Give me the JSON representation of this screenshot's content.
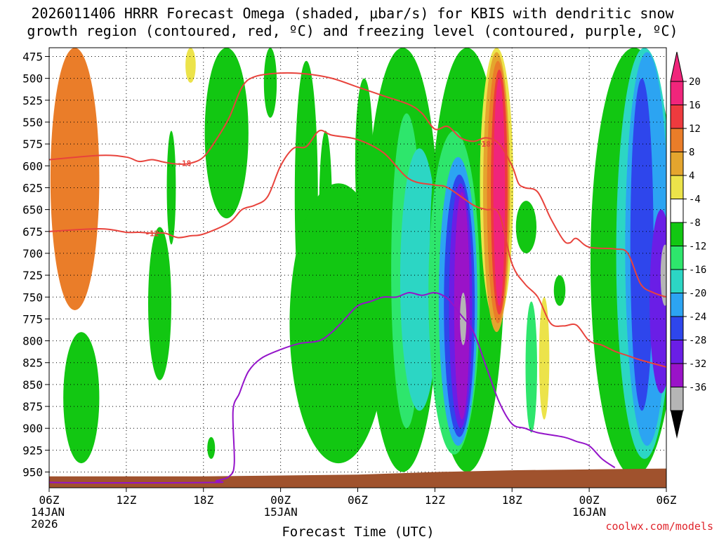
{
  "chart_data": {
    "type": "heatmap",
    "title_line1": "2026011406 HRRR Forecast Omega (shaded, μbar/s) for KBIS with dendritic snow",
    "title_line2": "growth region (contoured, red, ºC) and freezing level (contoured, purple, ºC)",
    "xlabel": "Forecast Time (UTC)",
    "credit": "coolwx.com/models",
    "x_range_hours": [
      0,
      48
    ],
    "y_range_mb": [
      465,
      968
    ],
    "y_ticks": [
      {
        "value": 475,
        "label": "475"
      },
      {
        "value": 500,
        "label": "500"
      },
      {
        "value": 525,
        "label": "525"
      },
      {
        "value": 550,
        "label": "550"
      },
      {
        "value": 575,
        "label": "575"
      },
      {
        "value": 600,
        "label": "600"
      },
      {
        "value": 625,
        "label": "625"
      },
      {
        "value": 650,
        "label": "650"
      },
      {
        "value": 675,
        "label": "675"
      },
      {
        "value": 700,
        "label": "700"
      },
      {
        "value": 725,
        "label": "725"
      },
      {
        "value": 750,
        "label": "750"
      },
      {
        "value": 775,
        "label": "775"
      },
      {
        "value": 800,
        "label": "800"
      },
      {
        "value": 825,
        "label": "825"
      },
      {
        "value": 850,
        "label": "850"
      },
      {
        "value": 875,
        "label": "875"
      },
      {
        "value": 900,
        "label": "900"
      },
      {
        "value": 925,
        "label": "925"
      },
      {
        "value": 950,
        "label": "950"
      }
    ],
    "x_ticks": [
      {
        "hour": 0,
        "lines": [
          "06Z",
          "14JAN",
          "2026"
        ]
      },
      {
        "hour": 6,
        "lines": [
          "12Z"
        ]
      },
      {
        "hour": 12,
        "lines": [
          "18Z"
        ]
      },
      {
        "hour": 18,
        "lines": [
          "00Z",
          "15JAN"
        ]
      },
      {
        "hour": 24,
        "lines": [
          "06Z"
        ]
      },
      {
        "hour": 30,
        "lines": [
          "12Z"
        ]
      },
      {
        "hour": 36,
        "lines": [
          "18Z"
        ]
      },
      {
        "hour": 42,
        "lines": [
          "00Z",
          "16JAN"
        ]
      },
      {
        "hour": 48,
        "lines": [
          "06Z"
        ]
      }
    ],
    "colorbar": {
      "labels": [
        "20",
        "16",
        "12",
        "8",
        "4",
        "-4",
        "-8",
        "-12",
        "-16",
        "-20",
        "-24",
        "-28",
        "-32",
        "-36"
      ],
      "bins": [
        {
          "lo": 20,
          "hi": 24,
          "color": "#f0257b"
        },
        {
          "lo": 16,
          "hi": 20,
          "color": "#ee3a3e"
        },
        {
          "lo": 12,
          "hi": 16,
          "color": "#ea7d29"
        },
        {
          "lo": 8,
          "hi": 12,
          "color": "#e4a52e"
        },
        {
          "lo": 4,
          "hi": 8,
          "color": "#ece34a"
        },
        {
          "lo": -4,
          "hi": 4,
          "color": "#ffffff"
        },
        {
          "lo": -8,
          "hi": -4,
          "color": "#12c712"
        },
        {
          "lo": -12,
          "hi": -8,
          "color": "#2ee66c"
        },
        {
          "lo": -16,
          "hi": -12,
          "color": "#2cd6c4"
        },
        {
          "lo": -20,
          "hi": -16,
          "color": "#2ca4f2"
        },
        {
          "lo": -24,
          "hi": -20,
          "color": "#2e46ec"
        },
        {
          "lo": -28,
          "hi": -24,
          "color": "#6a1ee6"
        },
        {
          "lo": -32,
          "hi": -28,
          "color": "#9a13c8"
        },
        {
          "lo": -36,
          "hi": -32,
          "color": "#b5b5b5"
        }
      ],
      "top_arrow_color": "#f0257b",
      "bottom_arrow_color": "#000000"
    },
    "terrain": {
      "color": "#a0522d",
      "surface_mb": [
        [
          0,
          955
        ],
        [
          12,
          955
        ],
        [
          24,
          953
        ],
        [
          30,
          950
        ],
        [
          36,
          948
        ],
        [
          48,
          946
        ]
      ]
    },
    "omega_features": [
      {
        "hour": 2,
        "top": 465,
        "bottom": 765,
        "hw": 1.9,
        "value": 15
      },
      {
        "hour": 11,
        "top": 465,
        "bottom": 505,
        "hw": 0.4,
        "value": 5
      },
      {
        "hour": 2.5,
        "top": 790,
        "bottom": 940,
        "hw": 1.4,
        "value": -6
      },
      {
        "hour": 8.6,
        "top": 670,
        "bottom": 845,
        "hw": 0.9,
        "value": -6
      },
      {
        "hour": 9.5,
        "top": 560,
        "bottom": 690,
        "hw": 0.35,
        "value": -6
      },
      {
        "hour": 12.6,
        "top": 910,
        "bottom": 935,
        "hw": 0.3,
        "value": -6
      },
      {
        "hour": 13.8,
        "top": 465,
        "bottom": 660,
        "hw": 1.7,
        "value": -6
      },
      {
        "hour": 17.2,
        "top": 465,
        "bottom": 545,
        "hw": 0.5,
        "value": -6
      },
      {
        "hour": 20,
        "top": 480,
        "bottom": 790,
        "hw": 0.9,
        "value": -6
      },
      {
        "hour": 21.5,
        "top": 560,
        "bottom": 740,
        "hw": 0.5,
        "value": -6
      },
      {
        "hour": 24.5,
        "top": 500,
        "bottom": 690,
        "hw": 0.7,
        "value": -6
      },
      {
        "hour": 22.5,
        "top": 620,
        "bottom": 940,
        "hw": 3.8,
        "value": -6
      },
      {
        "hour": 27.5,
        "top": 465,
        "bottom": 950,
        "hw": 2.9,
        "value": -6
      },
      {
        "hour": 27.8,
        "top": 540,
        "bottom": 900,
        "hw": 1.2,
        "value": -10
      },
      {
        "hour": 28.8,
        "top": 580,
        "bottom": 880,
        "hw": 1.5,
        "value": -14
      },
      {
        "hour": 32.5,
        "top": 465,
        "bottom": 950,
        "hw": 2.9,
        "value": -8
      },
      {
        "hour": 31.5,
        "top": 560,
        "bottom": 930,
        "hw": 2.0,
        "value": -12
      },
      {
        "hour": 31.8,
        "top": 590,
        "bottom": 920,
        "hw": 1.5,
        "value": -18
      },
      {
        "hour": 31.9,
        "top": 610,
        "bottom": 910,
        "hw": 1.2,
        "value": -22
      },
      {
        "hour": 32.0,
        "top": 620,
        "bottom": 900,
        "hw": 0.9,
        "value": -26
      },
      {
        "hour": 32.1,
        "top": 630,
        "bottom": 890,
        "hw": 0.6,
        "value": -30
      },
      {
        "hour": 32.2,
        "top": 745,
        "bottom": 805,
        "hw": 0.25,
        "value": -34
      },
      {
        "hour": 34.8,
        "top": 465,
        "bottom": 780,
        "hw": 1.3,
        "value": 6
      },
      {
        "hour": 34.8,
        "top": 470,
        "bottom": 790,
        "hw": 1.05,
        "value": 10
      },
      {
        "hour": 34.9,
        "top": 480,
        "bottom": 780,
        "hw": 0.85,
        "value": 14
      },
      {
        "hour": 35.0,
        "top": 490,
        "bottom": 770,
        "hw": 0.65,
        "value": 18
      },
      {
        "hour": 35.0,
        "top": 500,
        "bottom": 760,
        "hw": 0.45,
        "value": 22
      },
      {
        "hour": 37.1,
        "top": 640,
        "bottom": 700,
        "hw": 0.8,
        "value": -6
      },
      {
        "hour": 37.5,
        "top": 755,
        "bottom": 905,
        "hw": 0.45,
        "value": -10
      },
      {
        "hour": 38.5,
        "top": 750,
        "bottom": 890,
        "hw": 0.4,
        "value": 6
      },
      {
        "hour": 39.7,
        "top": 725,
        "bottom": 760,
        "hw": 0.45,
        "value": -6
      },
      {
        "hour": 45.5,
        "top": 465,
        "bottom": 955,
        "hw": 3.4,
        "value": -8
      },
      {
        "hour": 46.3,
        "top": 465,
        "bottom": 935,
        "hw": 2.2,
        "value": -14
      },
      {
        "hour": 46.5,
        "top": 470,
        "bottom": 920,
        "hw": 1.7,
        "value": -18
      },
      {
        "hour": 46.1,
        "top": 500,
        "bottom": 880,
        "hw": 0.9,
        "value": -22
      },
      {
        "hour": 47.6,
        "top": 650,
        "bottom": 860,
        "hw": 0.9,
        "value": -26
      },
      {
        "hour": 47.9,
        "top": 690,
        "bottom": 760,
        "hw": 0.35,
        "value": -34
      }
    ],
    "dgz_contours": [
      {
        "label": "-18",
        "label_at": [
          10.5,
          597
        ],
        "points": [
          [
            0,
            593
          ],
          [
            4,
            588
          ],
          [
            6,
            590
          ],
          [
            7,
            595
          ],
          [
            8,
            593
          ],
          [
            9,
            596
          ],
          [
            10,
            598
          ],
          [
            11,
            597
          ],
          [
            12,
            590
          ],
          [
            13,
            570
          ],
          [
            14,
            545
          ],
          [
            15,
            510
          ],
          [
            16,
            498
          ],
          [
            18,
            494
          ],
          [
            20,
            495
          ],
          [
            22,
            500
          ],
          [
            24,
            510
          ],
          [
            26,
            520
          ],
          [
            28,
            530
          ],
          [
            29,
            540
          ],
          [
            30,
            558
          ],
          [
            31,
            555
          ],
          [
            32,
            568
          ],
          [
            33,
            572
          ],
          [
            34,
            568
          ],
          [
            35,
            575
          ],
          [
            36,
            600
          ],
          [
            36.5,
            620
          ],
          [
            37,
            625
          ],
          [
            38,
            630
          ],
          [
            39,
            660
          ],
          [
            40,
            685
          ],
          [
            40.5,
            688
          ],
          [
            41,
            683
          ],
          [
            42,
            693
          ],
          [
            44,
            695
          ],
          [
            45,
            700
          ],
          [
            46,
            735
          ],
          [
            47,
            745
          ],
          [
            48,
            750
          ]
        ]
      },
      {
        "label": "-12",
        "label_at": [
          8,
          677
        ],
        "points": [
          [
            0,
            675
          ],
          [
            4,
            672
          ],
          [
            6,
            676
          ],
          [
            7,
            676
          ],
          [
            8,
            677
          ],
          [
            9,
            677
          ],
          [
            10,
            682
          ],
          [
            11,
            680
          ],
          [
            12,
            678
          ],
          [
            14,
            665
          ],
          [
            15,
            650
          ],
          [
            16,
            645
          ],
          [
            17,
            635
          ],
          [
            18,
            600
          ],
          [
            19,
            580
          ],
          [
            20,
            578
          ],
          [
            21,
            560
          ],
          [
            22,
            565
          ],
          [
            24,
            570
          ],
          [
            26,
            585
          ],
          [
            28,
            615
          ],
          [
            30,
            622
          ],
          [
            31,
            625
          ],
          [
            33,
            645
          ],
          [
            34,
            650
          ],
          [
            35,
            655
          ],
          [
            36,
            712
          ],
          [
            37,
            735
          ],
          [
            38,
            750
          ],
          [
            39,
            780
          ],
          [
            40,
            783
          ],
          [
            41,
            782
          ],
          [
            42,
            800
          ],
          [
            43,
            805
          ],
          [
            44,
            812
          ],
          [
            45,
            817
          ],
          [
            46,
            822
          ],
          [
            48,
            830
          ]
        ]
      }
    ],
    "freezing_level": {
      "color": "#9414c9",
      "points": [
        [
          0,
          958
        ],
        [
          0.5,
          962
        ],
        [
          12.5,
          962
        ],
        [
          13,
          960
        ],
        [
          14,
          955
        ],
        [
          14.4,
          940
        ],
        [
          14.3,
          880
        ],
        [
          14.8,
          860
        ],
        [
          15.5,
          835
        ],
        [
          16.5,
          820
        ],
        [
          18,
          810
        ],
        [
          19.5,
          803
        ],
        [
          21,
          800
        ],
        [
          22,
          790
        ],
        [
          23,
          775
        ],
        [
          24,
          760
        ],
        [
          25,
          755
        ],
        [
          26,
          750
        ],
        [
          27,
          750
        ],
        [
          28,
          745
        ],
        [
          29,
          748
        ],
        [
          30,
          745
        ],
        [
          31,
          752
        ],
        [
          32,
          770
        ],
        [
          33,
          790
        ],
        [
          34,
          830
        ],
        [
          35,
          870
        ],
        [
          36,
          895
        ],
        [
          37,
          900
        ],
        [
          38,
          905
        ],
        [
          40,
          910
        ],
        [
          41,
          915
        ],
        [
          42,
          920
        ],
        [
          43,
          935
        ],
        [
          44,
          945
        ]
      ]
    }
  }
}
